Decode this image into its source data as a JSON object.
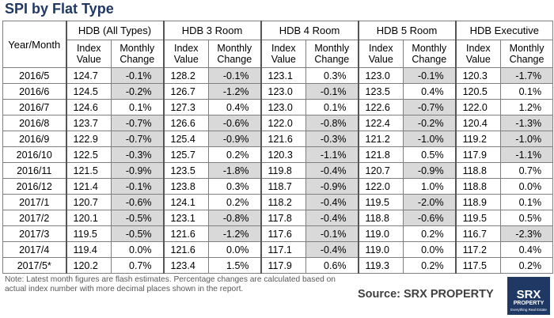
{
  "header": {
    "title": "SPI by Flat Type"
  },
  "table": {
    "corner": "Year/Month",
    "groups": [
      "HDB (All Types)",
      "HDB 3 Room",
      "HDB 4 Room",
      "HDB 5 Room",
      "HDB Executive"
    ],
    "subheaders": [
      "Index Value",
      "Monthly Change"
    ],
    "rows": [
      [
        "2016/5",
        "124.7",
        "-0.1%",
        "128.2",
        "-0.1%",
        "123.1",
        "0.3%",
        "123.0",
        "-0.1%",
        "120.3",
        "-1.7%"
      ],
      [
        "2016/6",
        "124.5",
        "-0.2%",
        "126.7",
        "-1.2%",
        "123.0",
        "-0.1%",
        "123.5",
        "0.4%",
        "120.5",
        "0.1%"
      ],
      [
        "2016/7",
        "124.6",
        "0.1%",
        "127.3",
        "0.4%",
        "123.0",
        "0.1%",
        "122.6",
        "-0.7%",
        "122.0",
        "1.2%"
      ],
      [
        "2016/8",
        "123.7",
        "-0.7%",
        "126.6",
        "-0.6%",
        "122.0",
        "-0.8%",
        "122.4",
        "-0.2%",
        "120.4",
        "-1.3%"
      ],
      [
        "2016/9",
        "122.9",
        "-0.7%",
        "125.4",
        "-0.9%",
        "121.6",
        "-0.3%",
        "121.2",
        "-1.0%",
        "119.2",
        "-1.0%"
      ],
      [
        "2016/10",
        "122.5",
        "-0.3%",
        "125.7",
        "0.2%",
        "120.3",
        "-1.1%",
        "121.8",
        "0.5%",
        "117.9",
        "-1.1%"
      ],
      [
        "2016/11",
        "121.5",
        "-0.9%",
        "123.5",
        "-1.8%",
        "119.8",
        "-0.4%",
        "120.7",
        "-0.9%",
        "118.8",
        "0.7%"
      ],
      [
        "2016/12",
        "121.4",
        "-0.1%",
        "123.8",
        "0.3%",
        "118.7",
        "-0.9%",
        "122.0",
        "1.0%",
        "118.8",
        "0.0%"
      ],
      [
        "2017/1",
        "120.7",
        "-0.6%",
        "124.1",
        "0.2%",
        "118.2",
        "-0.4%",
        "119.5",
        "-2.0%",
        "118.9",
        "0.1%"
      ],
      [
        "2017/2",
        "120.1",
        "-0.5%",
        "123.1",
        "-0.8%",
        "117.8",
        "-0.4%",
        "118.8",
        "-0.6%",
        "119.5",
        "0.5%"
      ],
      [
        "2017/3",
        "119.5",
        "-0.5%",
        "121.6",
        "-1.2%",
        "117.6",
        "-0.1%",
        "119.0",
        "0.2%",
        "116.7",
        "-2.3%"
      ],
      [
        "2017/4",
        "119.4",
        "0.0%",
        "121.6",
        "0.0%",
        "117.1",
        "-0.4%",
        "119.0",
        "0.0%",
        "117.2",
        "0.4%"
      ],
      [
        "2017/5*",
        "120.2",
        "0.7%",
        "123.4",
        "1.5%",
        "117.9",
        "0.6%",
        "119.3",
        "0.2%",
        "117.5",
        "0.2%"
      ]
    ]
  },
  "footer": {
    "note": "Note: Latest month figures are flash estimates. Percentage changes are calculated based on actual index number with more decimal places shown in the report.",
    "source": "Source:  SRX PROPERTY"
  },
  "logo": {
    "name": "SRX",
    "sub": "PROPERTY",
    "tagline": "Everything Real Estate"
  }
}
